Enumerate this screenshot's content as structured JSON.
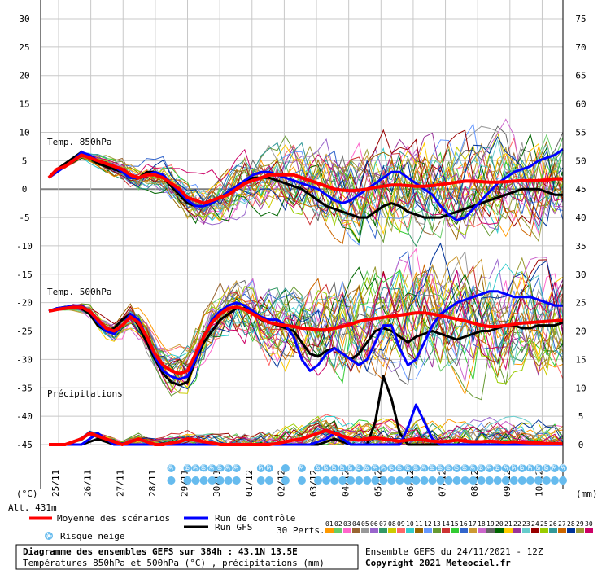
{
  "chart_data": {
    "type": "line",
    "title": "Diagramme des ensembles GEFS sur 384h : 43.1N 13.5E",
    "subtitle": "Températures 850hPa et 500hPa (°C) , précipitations (mm)",
    "run_info": "Ensemble GEFS du 24/11/2021 - 12Z",
    "copyright": "Copyright 2021 Meteociel.fr",
    "altitude": "Alt. 431m",
    "left_unit": "(°C)",
    "right_unit": "(mm)",
    "left_ticks": [
      "30",
      "25",
      "20",
      "15",
      "10",
      "5",
      "0",
      "-5",
      "-10",
      "-15",
      "-20",
      "-25",
      "-30",
      "-35",
      "-40",
      "-45"
    ],
    "right_ticks": [
      "75",
      "70",
      "65",
      "60",
      "55",
      "50",
      "45",
      "40",
      "35",
      "30",
      "25",
      "20",
      "15",
      "10",
      "5",
      "0"
    ],
    "dates": [
      "25/11",
      "26/11",
      "27/11",
      "28/11",
      "29/11",
      "30/11",
      "01/12",
      "02/12",
      "03/12",
      "04/12",
      "05/12",
      "06/12",
      "07/12",
      "08/12",
      "09/12",
      "10/12"
    ],
    "panel_labels": [
      "Temp. 850hPa",
      "Temp. 500hPa",
      "Précipitations"
    ],
    "ylim": [
      -45,
      30
    ],
    "steps": 64,
    "series": [
      {
        "name": "Moyenne des scénarios",
        "color": "#ff0000",
        "t850": [
          2,
          3.5,
          4,
          5,
          6,
          5.5,
          5,
          4.5,
          4,
          3.5,
          2.5,
          2,
          2.5,
          2.5,
          2,
          1,
          0,
          -1.5,
          -2,
          -2.5,
          -2,
          -1.5,
          -1,
          0,
          1,
          1.5,
          2,
          2.5,
          2.5,
          2.5,
          2.5,
          2,
          1.5,
          1,
          0.5,
          0,
          -0.2,
          -0.3,
          -0.2,
          0,
          0.3,
          0.5,
          0.7,
          0.7,
          0.6,
          0.5,
          0.5,
          0.6,
          0.8,
          1,
          1.2,
          1.4,
          1.4,
          1.3,
          1.2,
          1.2,
          1.3,
          1.4,
          1.5,
          1.5,
          1.5,
          1.6,
          1.8,
          1.8
        ],
        "t500": [
          -21.5,
          -21.2,
          -21,
          -20.8,
          -20.8,
          -21.5,
          -23,
          -24.5,
          -25,
          -24,
          -22.5,
          -23.5,
          -26,
          -29,
          -31,
          -32,
          -32.5,
          -32,
          -29,
          -26,
          -23.5,
          -22,
          -21,
          -20.8,
          -21.2,
          -22,
          -22.8,
          -23.5,
          -23.8,
          -24,
          -24.2,
          -24.5,
          -24.6,
          -24.8,
          -24.8,
          -24.5,
          -24.2,
          -23.8,
          -23.3,
          -23,
          -22.8,
          -22.6,
          -22.4,
          -22.2,
          -22,
          -21.8,
          -21.8,
          -22,
          -22.3,
          -22.6,
          -22.9,
          -23.2,
          -23.6,
          -24,
          -24.2,
          -24.2,
          -24,
          -23.8,
          -23.6,
          -23.5,
          -23.4,
          -23.3,
          -23.2,
          -23.1
        ],
        "precip": [
          0,
          0,
          0,
          0.5,
          1,
          2,
          1.5,
          1,
          0.5,
          0,
          0.5,
          1,
          0.5,
          0,
          0,
          0.3,
          0.5,
          1,
          0.8,
          0.5,
          0.3,
          0,
          0,
          0,
          0,
          0,
          0,
          0,
          0.2,
          0.5,
          0.8,
          1,
          1.5,
          2,
          2.5,
          2,
          1.5,
          1,
          0.8,
          1,
          1.2,
          1,
          0.8,
          0.6,
          0.8,
          1,
          0.8,
          0.6,
          0.5,
          0.6,
          0.8,
          0.6,
          0.5,
          0.5,
          0.6,
          0.5,
          0.4,
          0.5,
          0.4,
          0.3,
          0.3,
          0.2,
          0.2,
          0.1
        ]
      },
      {
        "name": "Run de contrôle",
        "color": "#0000ff",
        "t850": [
          2,
          3,
          4,
          5,
          6.5,
          6,
          5,
          4.5,
          4,
          3,
          2,
          2,
          2.5,
          3,
          2.5,
          1,
          -0.5,
          -2,
          -3,
          -3,
          -2.5,
          -1.5,
          -0.5,
          0.5,
          1.5,
          2.5,
          3,
          3,
          2.5,
          2,
          1.5,
          1,
          0.5,
          0,
          -1,
          -2,
          -2.5,
          -2,
          -1,
          0,
          1,
          2,
          3,
          3,
          2,
          1,
          0,
          -1,
          -3,
          -4.5,
          -5.5,
          -5,
          -3.5,
          -2,
          -0.5,
          1,
          2,
          3,
          3.5,
          4,
          5,
          5.5,
          6,
          7
        ],
        "t500": [
          -21.5,
          -21,
          -20.8,
          -20.5,
          -20.5,
          -21.5,
          -23.5,
          -25,
          -25.5,
          -24,
          -22,
          -23,
          -26,
          -29.5,
          -32,
          -33,
          -33.5,
          -33,
          -30,
          -26,
          -23,
          -21.5,
          -20.5,
          -20,
          -20.5,
          -21.5,
          -22.5,
          -23,
          -23,
          -24,
          -26,
          -30,
          -32,
          -31,
          -29,
          -28,
          -29,
          -30,
          -31,
          -30,
          -27,
          -24,
          -24,
          -28,
          -31,
          -30,
          -27,
          -24,
          -22,
          -21,
          -20,
          -19.5,
          -19,
          -18.5,
          -18,
          -18,
          -18.5,
          -19,
          -19,
          -19,
          -19.5,
          -20,
          -20.5,
          -20.5
        ],
        "precip": [
          0,
          0,
          0,
          0,
          0,
          1,
          2,
          1,
          0,
          0,
          0,
          0,
          0,
          0,
          0,
          0,
          0,
          0,
          0,
          0,
          0,
          0,
          0,
          0,
          0,
          0,
          0,
          0,
          0,
          0,
          0,
          0,
          0,
          0.5,
          1,
          2,
          1,
          0,
          0,
          0,
          0,
          0,
          0,
          0,
          3,
          7,
          4,
          1,
          0,
          0,
          0,
          0,
          0,
          0,
          0,
          0,
          0,
          0,
          0,
          0,
          0,
          0,
          0,
          0
        ]
      },
      {
        "name": "Run GFS",
        "color": "#000000",
        "t850": [
          2,
          3.5,
          4.5,
          5.5,
          6.5,
          5.5,
          4.5,
          4,
          3.5,
          3,
          2,
          2,
          3,
          3,
          2,
          0.5,
          -1,
          -2.5,
          -3,
          -3,
          -2.5,
          -1.5,
          -0.5,
          0.5,
          1.5,
          2,
          2,
          2,
          1.5,
          1,
          0.5,
          0,
          -1,
          -2,
          -3,
          -3.5,
          -4,
          -4.5,
          -5,
          -5,
          -4,
          -3,
          -2.5,
          -3,
          -4,
          -4.5,
          -5,
          -5,
          -5,
          -4.5,
          -4,
          -3.5,
          -3,
          -2.5,
          -2,
          -1.5,
          -1,
          -0.5,
          0,
          0,
          0,
          -0.5,
          -1,
          -1
        ],
        "t500": [
          -21.5,
          -21,
          -20.8,
          -20.8,
          -21,
          -22,
          -24,
          -25,
          -24.5,
          -23,
          -22,
          -24,
          -27,
          -30,
          -32.5,
          -34,
          -34.5,
          -34,
          -30,
          -27,
          -25,
          -23,
          -22,
          -21,
          -21,
          -22,
          -23,
          -23.5,
          -24,
          -24.5,
          -25,
          -27,
          -29,
          -29.5,
          -28.5,
          -28,
          -29,
          -30,
          -29,
          -27,
          -25,
          -24.5,
          -25,
          -26,
          -27,
          -26,
          -25.5,
          -25,
          -25.5,
          -26,
          -26.5,
          -26,
          -25.5,
          -25,
          -25,
          -24.5,
          -24,
          -24,
          -24.5,
          -24.5,
          -24,
          -24,
          -24,
          -23.5
        ],
        "precip": [
          0,
          0,
          0,
          0,
          0,
          0.5,
          1,
          0.5,
          0,
          0,
          0,
          0,
          0,
          0,
          0,
          0,
          0,
          0,
          0,
          0,
          0,
          0,
          0,
          0,
          0,
          0,
          0,
          0,
          0,
          0,
          0,
          0,
          0,
          0,
          0.5,
          1,
          0.5,
          0,
          0,
          0,
          4,
          12,
          8,
          2,
          0,
          0,
          0,
          0,
          0,
          0,
          0,
          0,
          0,
          0,
          0,
          0,
          0,
          0,
          0,
          0,
          0,
          0,
          0,
          0
        ]
      }
    ],
    "member_colors": [
      "#ff9900",
      "#66cc66",
      "#ff66cc",
      "#996633",
      "#999999",
      "#9966cc",
      "#339966",
      "#cccc00",
      "#ff6666",
      "#33cccc",
      "#996600",
      "#6699ff",
      "#669933",
      "#cc3333",
      "#33cc33",
      "#3366cc",
      "#cc9933",
      "#cc66cc",
      "#666666",
      "#006600",
      "#ffcc00",
      "#993399",
      "#66cccc",
      "#990000",
      "#99cc00",
      "#339999",
      "#cc6600",
      "#003399",
      "#999933",
      "#cc0066"
    ],
    "legend": {
      "mean": "Moyenne des scénarios",
      "control": "Run de contrôle",
      "gfs": "Run GFS",
      "snow": "Risque neige",
      "perts": "30 Perts.",
      "pert_numbers": [
        "01",
        "02",
        "03",
        "04",
        "05",
        "06",
        "07",
        "08",
        "09",
        "10",
        "11",
        "12",
        "13",
        "14",
        "15",
        "16",
        "17",
        "18",
        "19",
        "20",
        "21",
        "22",
        "23",
        "24",
        "25",
        "26",
        "27",
        "28",
        "29",
        "30"
      ]
    },
    "snow_risk_color": "#66bbee",
    "snow_risk": [
      {
        "step": 15,
        "label": "3%"
      },
      {
        "step": 17,
        "label": "6%"
      },
      {
        "step": 18,
        "label": "13%"
      },
      {
        "step": 19,
        "label": "10%"
      },
      {
        "step": 20,
        "label": "23%"
      },
      {
        "step": 21,
        "label": "10%"
      },
      {
        "step": 22,
        "label": "3%"
      },
      {
        "step": 23,
        "label": "3%"
      },
      {
        "step": 26,
        "label": "3%"
      },
      {
        "step": 27,
        "label": "3%"
      },
      {
        "step": 29,
        "label": ""
      },
      {
        "step": 31,
        "label": "3%"
      },
      {
        "step": 33,
        "label": "10%"
      },
      {
        "step": 34,
        "label": "10%"
      },
      {
        "step": 35,
        "label": "10%"
      },
      {
        "step": 36,
        "label": "10%"
      },
      {
        "step": 37,
        "label": "10%"
      },
      {
        "step": 38,
        "label": "6%"
      },
      {
        "step": 39,
        "label": "10%"
      },
      {
        "step": 40,
        "label": "13%"
      },
      {
        "step": 41,
        "label": "3%"
      },
      {
        "step": 42,
        "label": "6%"
      },
      {
        "step": 43,
        "label": "10%"
      },
      {
        "step": 44,
        "label": "6%"
      },
      {
        "step": 45,
        "label": "10%"
      },
      {
        "step": 46,
        "label": "13%"
      },
      {
        "step": 47,
        "label": "10%"
      },
      {
        "step": 48,
        "label": "10%"
      },
      {
        "step": 49,
        "label": "10%"
      },
      {
        "step": 50,
        "label": "6%"
      },
      {
        "step": 51,
        "label": "10%"
      },
      {
        "step": 52,
        "label": "3%"
      },
      {
        "step": 53,
        "label": "6%"
      },
      {
        "step": 54,
        "label": "3%"
      },
      {
        "step": 55,
        "label": "6%"
      },
      {
        "step": 56,
        "label": "3%"
      },
      {
        "step": 57,
        "label": "3%"
      },
      {
        "step": 58,
        "label": "6%"
      },
      {
        "step": 59,
        "label": "13%"
      },
      {
        "step": 60,
        "label": "10%"
      },
      {
        "step": 61,
        "label": "6%"
      },
      {
        "step": 62,
        "label": "3%"
      },
      {
        "step": 63,
        "label": "3%"
      }
    ]
  }
}
